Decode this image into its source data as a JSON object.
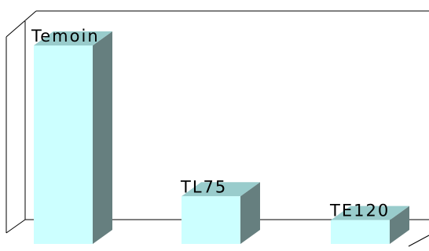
{
  "chart_data": {
    "type": "bar",
    "style": "3d",
    "categories": [
      "Temoin",
      "TL75",
      "TE120"
    ],
    "values": [
      100,
      24,
      12
    ],
    "data_labels": [
      "Temoin",
      "TL75",
      "TE120"
    ],
    "ylim": [
      0,
      100
    ],
    "grid": false,
    "legend": "none"
  },
  "colors": {
    "bar_front": "#ccffff",
    "bar_top": "#99cccc",
    "bar_side": "#667f7f",
    "axis": "#000000",
    "background": "#ffffff"
  }
}
